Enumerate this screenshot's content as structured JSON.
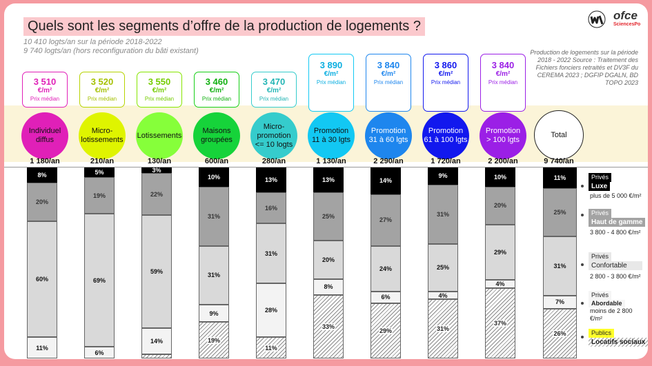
{
  "title": "Quels sont les segments d’offre de la production de logements ?",
  "subtitle1": "10 410 logts/an sur la période 2018-2022",
  "subtitle2": "9 740 logts/an (hors reconfiguration du bâti existant)",
  "source": "Production de logements sur la période 2018 - 2022 Source : Traitement des Fichiers fonciers retraités et DV3F du CEREMA 2023 ; DGFIP DGALN, BD TOPO  2023",
  "logo": {
    "name": "ofce",
    "sub": "SciencesPo"
  },
  "price_unit": "€/m²",
  "price_caption": "Prix médian",
  "legend": {
    "luxe": {
      "tag": "Privés",
      "name": "Luxe",
      "price": "plus de 5 000 €/m²"
    },
    "haut": {
      "tag": "Privés",
      "name": "Haut de gamme",
      "price": "3 800 - 4 800 €/m²"
    },
    "conf": {
      "tag": "Privés",
      "name": "Confortable",
      "price": "2 800 - 3 800 €/m²"
    },
    "abord": {
      "tag": "Privés",
      "name": "Abordable",
      "price": "moins de 2 800 €/m²"
    },
    "pub": {
      "tag": "Publics",
      "name": "Locatifs sociaux"
    }
  },
  "colors": {
    "c1": "#e020b8",
    "c2": "#b6d300",
    "c3": "#86e600",
    "c4": "#16cf16",
    "c5": "#35cccc",
    "c6": "#12c8f3",
    "c7": "#1e86ee",
    "c8": "#1218ee",
    "c9": "#9b1fe6"
  },
  "columns": [
    {
      "label": "Individuel\ndiffus",
      "price": "3 510",
      "volume": "1 180/an"
    },
    {
      "label": "Micro-\nlotissements",
      "price": "3 520",
      "volume": "210/an"
    },
    {
      "label": "Lotissements",
      "price": "3 550",
      "volume": "130/an"
    },
    {
      "label": "Maisons\ngroupées",
      "price": "3 460",
      "volume": "600/an"
    },
    {
      "label": "Micro-\npromotion\n<= 10 logts",
      "price": "3 470",
      "volume": "280/an"
    },
    {
      "label": "Promotion\n11 à 30 lgts",
      "price": "3 890",
      "volume": "1 130/an"
    },
    {
      "label": "Promotion\n31 à 60 lgts",
      "price": "3 840",
      "volume": "2 290/an"
    },
    {
      "label": "Promotion\n61 à 100 lgts",
      "price": "3 860",
      "volume": "1 720/an"
    },
    {
      "label": "Promotion\n> 100 lgts",
      "price": "3 840",
      "volume": "2 200/an"
    },
    {
      "label": "Total",
      "price": "",
      "volume": "9 740/an"
    }
  ],
  "chart_data": {
    "type": "bar",
    "stacked": true,
    "normalized": true,
    "categories": [
      "Individuel diffus",
      "Micro-lotissements",
      "Lotissements",
      "Maisons groupées",
      "Micro-promotion <= 10 logts",
      "Promotion 11 à 30 lgts",
      "Promotion 31 à 60 lgts",
      "Promotion 61 à 100 lgts",
      "Promotion > 100 lgts",
      "Total"
    ],
    "series": [
      {
        "name": "Luxe",
        "values": [
          8,
          5,
          3,
          10,
          13,
          13,
          14,
          9,
          10,
          11
        ],
        "labels": [
          "8%",
          "5%",
          "3%",
          "10%",
          "13%",
          "13%",
          "14%",
          "9%",
          "10%",
          "11%"
        ]
      },
      {
        "name": "Haut de gamme",
        "values": [
          20,
          19,
          22,
          31,
          16,
          25,
          27,
          31,
          20,
          25
        ],
        "labels": [
          "20%",
          "19%",
          "22%",
          "31%",
          "16%",
          "25%",
          "27%",
          "31%",
          "20%",
          "25%"
        ]
      },
      {
        "name": "Confortable",
        "values": [
          60,
          69,
          59,
          31,
          31,
          20,
          24,
          25,
          29,
          31
        ],
        "labels": [
          "60%",
          "69%",
          "59%",
          "31%",
          "31%",
          "20%",
          "24%",
          "25%",
          "29%",
          "31%"
        ]
      },
      {
        "name": "Abordable",
        "values": [
          11,
          6,
          14,
          9,
          28,
          8,
          6,
          4,
          4,
          7
        ],
        "labels": [
          "11%",
          "6%",
          "14%",
          "9%",
          "28%",
          "8%",
          "6%",
          "4%",
          "4%",
          "7%"
        ]
      },
      {
        "name": "Locatifs sociaux",
        "values": [
          0,
          0,
          2,
          19,
          11,
          33,
          29,
          31,
          37,
          26
        ],
        "labels": [
          "",
          "",
          "",
          "19%",
          "11%",
          "33%",
          "29%",
          "31%",
          "37%",
          "26%"
        ]
      }
    ],
    "ylim": [
      0,
      100
    ]
  }
}
